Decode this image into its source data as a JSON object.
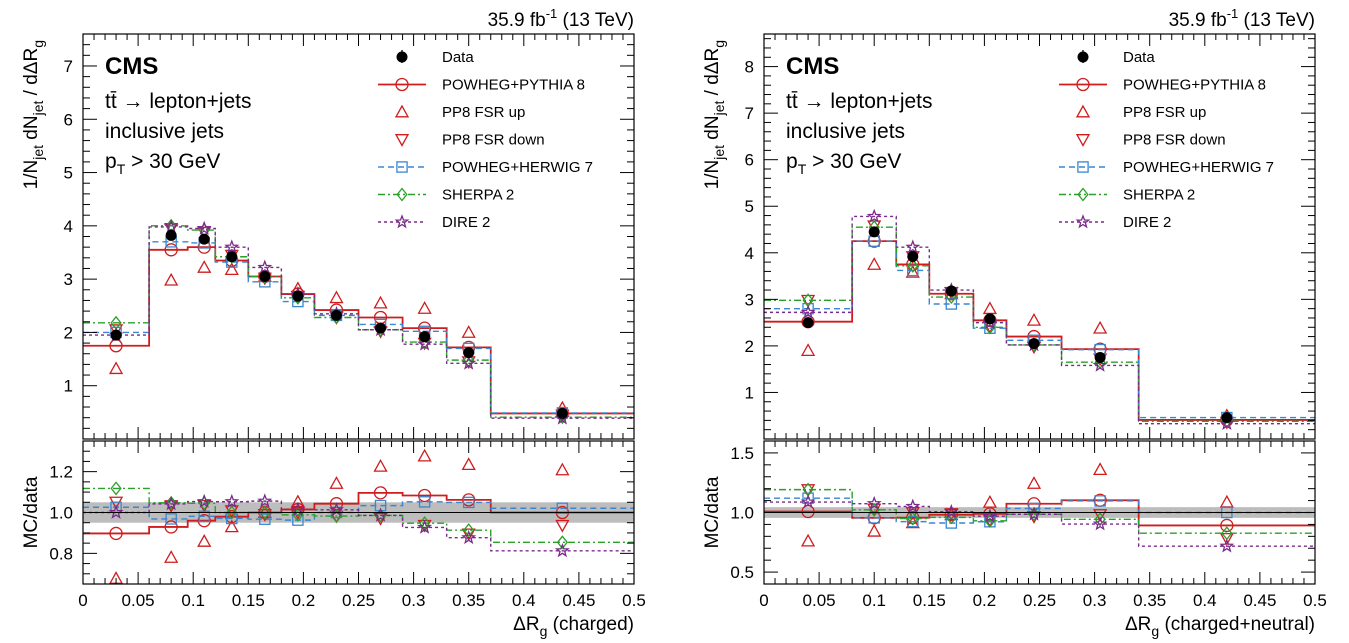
{
  "colors": {
    "data": "#000000",
    "pp8": "#d01c1c",
    "fsr_up": "#d01c1c",
    "fsr_down": "#d01c1c",
    "herwig": "#3a86d0",
    "sherpa": "#2aa02a",
    "dire": "#7a2a8a",
    "uncertainty_band": "#bdbdbd"
  },
  "chart_data": [
    {
      "type": "line",
      "panel": "left",
      "lumi_label": "35.9 fb",
      "lumi_sup": "-1",
      "lumi_energy": " (13 TeV)",
      "cms_label": "CMS",
      "info_lines": [
        "tt̄ → lepton+jets",
        "inclusive jets",
        "p",
        "T",
        " > 30 GeV"
      ],
      "xlabel": "ΔR",
      "xlabel_sub": "g",
      "xlabel_suffix": " (charged)",
      "ylabel_top": "1/N",
      "ylabel_top_sub": "jet",
      "ylabel_top_mid": " dN",
      "ylabel_top_mid_sub": "jet",
      "ylabel_top_end": " / dΔR",
      "ylabel_top_end_sub": "g",
      "ylabel_ratio": "MC/data",
      "xlim": [
        0,
        0.5
      ],
      "ylim_top": [
        0,
        7.6
      ],
      "ylim_ratio": [
        0.65,
        1.35
      ],
      "xticks": [
        "0",
        "0.05",
        "0.1",
        "0.15",
        "0.2",
        "0.25",
        "0.3",
        "0.35",
        "0.4",
        "0.45",
        "0.5"
      ],
      "yticks_top": [
        "1",
        "2",
        "3",
        "4",
        "5",
        "6",
        "7"
      ],
      "yticks_ratio": [
        "0.8",
        "1.0",
        "1.2"
      ],
      "yticks_ratio_vals": [
        0.8,
        1.0,
        1.2
      ],
      "bin_edges": [
        0,
        0.06,
        0.095,
        0.12,
        0.15,
        0.18,
        0.21,
        0.25,
        0.29,
        0.33,
        0.37,
        0.5
      ],
      "bin_centers": [
        0.03,
        0.08,
        0.11,
        0.135,
        0.165,
        0.195,
        0.23,
        0.27,
        0.31,
        0.35,
        0.435
      ],
      "data_values": [
        1.95,
        3.82,
        3.75,
        3.42,
        3.05,
        2.68,
        2.32,
        2.08,
        1.92,
        1.62,
        0.48
      ],
      "data_errors": [
        0.06,
        0.07,
        0.07,
        0.06,
        0.05,
        0.05,
        0.04,
        0.04,
        0.04,
        0.04,
        0.02
      ],
      "series": [
        {
          "name": "POWHEG+PYTHIA 8",
          "key": "pp8",
          "values": [
            1.75,
            3.55,
            3.6,
            3.35,
            3.05,
            2.72,
            2.42,
            2.28,
            2.08,
            1.72,
            0.48
          ]
        },
        {
          "name": "PP8 FSR up",
          "key": "fsr_up",
          "values": [
            1.32,
            2.98,
            3.22,
            3.18,
            3.05,
            2.82,
            2.65,
            2.55,
            2.45,
            2.0,
            0.58
          ]
        },
        {
          "name": "PP8 FSR down",
          "key": "fsr_down",
          "values": [
            2.05,
            3.95,
            3.88,
            3.45,
            3.02,
            2.68,
            2.28,
            2.02,
            1.8,
            1.45,
            0.45
          ]
        },
        {
          "name": "POWHEG+HERWIG 7",
          "key": "herwig",
          "values": [
            2.0,
            3.7,
            3.68,
            3.32,
            2.95,
            2.58,
            2.32,
            2.15,
            2.02,
            1.7,
            0.49
          ]
        },
        {
          "name": "SHERPA 2",
          "key": "sherpa",
          "values": [
            2.18,
            4.0,
            3.92,
            3.42,
            3.05,
            2.65,
            2.28,
            2.05,
            1.82,
            1.48,
            0.41
          ]
        },
        {
          "name": "DIRE 2",
          "key": "dire",
          "values": [
            1.95,
            3.98,
            3.95,
            3.6,
            3.22,
            2.72,
            2.35,
            2.05,
            1.78,
            1.42,
            0.39
          ]
        }
      ],
      "ratio_band": 0.05
    },
    {
      "type": "line",
      "panel": "right",
      "lumi_label": "35.9 fb",
      "lumi_sup": "-1",
      "lumi_energy": " (13 TeV)",
      "cms_label": "CMS",
      "info_lines": [
        "tt̄ → lepton+jets",
        "inclusive jets",
        "p",
        "T",
        " > 30 GeV"
      ],
      "xlabel": "ΔR",
      "xlabel_sub": "g",
      "xlabel_suffix": " (charged+neutral)",
      "ylabel_top": "1/N",
      "ylabel_top_sub": "jet",
      "ylabel_top_mid": " dN",
      "ylabel_top_mid_sub": "jet",
      "ylabel_top_end": " / dΔR",
      "ylabel_top_end_sub": "g",
      "ylabel_ratio": "MC/data",
      "xlim": [
        0,
        0.5
      ],
      "ylim_top": [
        0,
        8.7
      ],
      "ylim_ratio": [
        0.4,
        1.6
      ],
      "xticks": [
        "0",
        "0.05",
        "0.1",
        "0.15",
        "0.2",
        "0.25",
        "0.3",
        "0.35",
        "0.4",
        "0.45",
        "0.5"
      ],
      "yticks_top": [
        "1",
        "2",
        "3",
        "4",
        "5",
        "6",
        "7",
        "8"
      ],
      "yticks_ratio": [
        "0.5",
        "1.0",
        "1.5"
      ],
      "yticks_ratio_vals": [
        0.5,
        1.0,
        1.5
      ],
      "bin_edges": [
        0,
        0.08,
        0.12,
        0.15,
        0.19,
        0.22,
        0.27,
        0.34,
        0.5
      ],
      "bin_centers": [
        0.04,
        0.1,
        0.135,
        0.17,
        0.205,
        0.245,
        0.305,
        0.42
      ],
      "data_values": [
        2.5,
        4.45,
        3.92,
        3.18,
        2.58,
        2.05,
        1.75,
        0.46
      ],
      "data_errors": [
        0.07,
        0.08,
        0.07,
        0.06,
        0.05,
        0.04,
        0.04,
        0.02
      ],
      "series": [
        {
          "name": "POWHEG+PYTHIA 8",
          "key": "pp8",
          "values": [
            2.52,
            4.25,
            3.75,
            3.12,
            2.55,
            2.2,
            1.93,
            0.41
          ]
        },
        {
          "name": "PP8 FSR up",
          "key": "fsr_up",
          "values": [
            1.9,
            3.75,
            3.58,
            3.12,
            2.8,
            2.55,
            2.38,
            0.5
          ]
        },
        {
          "name": "PP8 FSR down",
          "key": "fsr_down",
          "values": [
            2.98,
            4.58,
            3.92,
            3.15,
            2.42,
            1.98,
            1.72,
            0.36
          ]
        },
        {
          "name": "POWHEG+HERWIG 7",
          "key": "herwig",
          "values": [
            2.8,
            4.25,
            3.62,
            2.9,
            2.38,
            2.12,
            1.92,
            0.46
          ]
        },
        {
          "name": "SHERPA 2",
          "key": "sherpa",
          "values": [
            2.98,
            4.55,
            3.72,
            3.05,
            2.4,
            2.02,
            1.65,
            0.38
          ]
        },
        {
          "name": "DIRE 2",
          "key": "dire",
          "values": [
            2.72,
            4.78,
            4.12,
            3.2,
            2.5,
            2.02,
            1.58,
            0.33
          ]
        }
      ],
      "ratio_band": 0.045
    }
  ]
}
